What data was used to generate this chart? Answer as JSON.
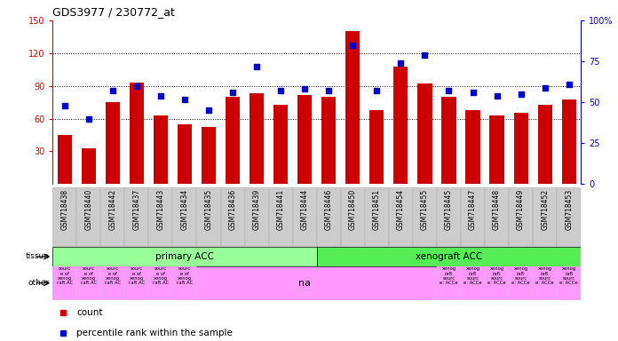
{
  "title": "GDS3977 / 230772_at",
  "samples": [
    "GSM718438",
    "GSM718440",
    "GSM718442",
    "GSM718437",
    "GSM718443",
    "GSM718434",
    "GSM718435",
    "GSM718436",
    "GSM718439",
    "GSM718441",
    "GSM718444",
    "GSM718446",
    "GSM718450",
    "GSM718451",
    "GSM718454",
    "GSM718455",
    "GSM718445",
    "GSM718447",
    "GSM718448",
    "GSM718449",
    "GSM718452",
    "GSM718453"
  ],
  "counts": [
    45,
    33,
    75,
    93,
    63,
    55,
    52,
    80,
    83,
    73,
    82,
    80,
    140,
    68,
    108,
    92,
    80,
    68,
    63,
    65,
    73,
    78
  ],
  "percentiles": [
    48,
    40,
    57,
    60,
    54,
    52,
    45,
    56,
    72,
    57,
    58,
    57,
    85,
    57,
    74,
    79,
    57,
    56,
    54,
    55,
    59,
    61
  ],
  "bar_color": "#cc0000",
  "dot_color": "#0000cc",
  "left_ylim": [
    0,
    150
  ],
  "right_ylim": [
    0,
    100
  ],
  "left_yticks": [
    30,
    60,
    90,
    120,
    150
  ],
  "right_yticks": [
    0,
    25,
    50,
    75,
    100
  ],
  "right_yticklabels": [
    "0",
    "25",
    "50",
    "75",
    "100%"
  ],
  "grid_values": [
    60,
    90,
    120
  ],
  "primary_n": 11,
  "xeno_n": 11,
  "other_small_n": 6,
  "other_big_n": 6,
  "tissue_primary_color": "#99ff99",
  "tissue_xeno_color": "#55ee55",
  "other_color": "#ff99ff",
  "xticklabel_bg": "#cccccc",
  "bg_color": "#ffffff",
  "axis_color_left": "#cc0000",
  "axis_color_right": "#0000cc"
}
